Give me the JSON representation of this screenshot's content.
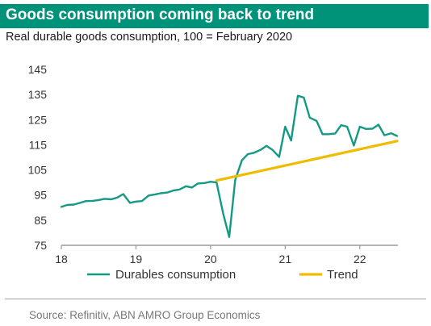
{
  "header": {
    "title": "Goods consumption coming back to trend",
    "subtitle": "Real durable goods consumption, 100 = February 2020"
  },
  "footer": {
    "source": "Source: Refinitiv, ABN AMRO Group Economics"
  },
  "colors": {
    "title_bg": "#00937a",
    "durables": "#149a84",
    "trend": "#f0bc00",
    "axis": "#9a9a9a"
  },
  "chart_data": {
    "type": "line",
    "x_unit": "year (two-digit, fractional)",
    "xlim": [
      18.0,
      22.5
    ],
    "ylim": [
      75,
      145
    ],
    "x_ticks": [
      {
        "value": 18,
        "label": "18"
      },
      {
        "value": 19,
        "label": "19"
      },
      {
        "value": 20,
        "label": "20"
      },
      {
        "value": 21,
        "label": "21"
      },
      {
        "value": 22,
        "label": "22"
      }
    ],
    "y_ticks": [
      {
        "value": 75,
        "label": "75"
      },
      {
        "value": 85,
        "label": "85"
      },
      {
        "value": 95,
        "label": "95"
      },
      {
        "value": 105,
        "label": "105"
      },
      {
        "value": 115,
        "label": "115"
      },
      {
        "value": 125,
        "label": "125"
      },
      {
        "value": 135,
        "label": "135"
      },
      {
        "value": 145,
        "label": "145"
      }
    ],
    "grid": false,
    "legend_position": "bottom",
    "series": [
      {
        "name": "Durables consumption",
        "color": "#149a84",
        "points": [
          [
            18.0,
            90.3
          ],
          [
            18.08,
            91.1
          ],
          [
            18.17,
            91.2
          ],
          [
            18.25,
            91.9
          ],
          [
            18.33,
            92.6
          ],
          [
            18.42,
            92.7
          ],
          [
            18.5,
            93.0
          ],
          [
            18.58,
            93.5
          ],
          [
            18.67,
            93.3
          ],
          [
            18.75,
            94.0
          ],
          [
            18.83,
            95.4
          ],
          [
            18.92,
            91.9
          ],
          [
            19.0,
            92.4
          ],
          [
            19.08,
            92.6
          ],
          [
            19.17,
            94.8
          ],
          [
            19.25,
            95.2
          ],
          [
            19.33,
            95.7
          ],
          [
            19.42,
            96.0
          ],
          [
            19.5,
            96.8
          ],
          [
            19.58,
            97.2
          ],
          [
            19.67,
            98.5
          ],
          [
            19.75,
            98.0
          ],
          [
            19.83,
            99.6
          ],
          [
            19.92,
            99.8
          ],
          [
            20.0,
            100.3
          ],
          [
            20.08,
            100.0
          ],
          [
            20.17,
            87.5
          ],
          [
            20.25,
            78.3
          ],
          [
            20.33,
            101.0
          ],
          [
            20.42,
            108.8
          ],
          [
            20.5,
            111.3
          ],
          [
            20.58,
            111.8
          ],
          [
            20.67,
            113.0
          ],
          [
            20.75,
            114.6
          ],
          [
            20.83,
            113.0
          ],
          [
            20.92,
            110.2
          ],
          [
            21.0,
            122.2
          ],
          [
            21.08,
            116.7
          ],
          [
            21.17,
            134.5
          ],
          [
            21.25,
            133.8
          ],
          [
            21.33,
            125.8
          ],
          [
            21.42,
            124.5
          ],
          [
            21.5,
            119.2
          ],
          [
            21.58,
            119.2
          ],
          [
            21.67,
            119.5
          ],
          [
            21.75,
            122.8
          ],
          [
            21.83,
            122.2
          ],
          [
            21.92,
            114.7
          ],
          [
            22.0,
            122.2
          ],
          [
            22.08,
            121.3
          ],
          [
            22.17,
            121.4
          ],
          [
            22.25,
            123.0
          ],
          [
            22.33,
            118.8
          ],
          [
            22.42,
            119.6
          ],
          [
            22.5,
            118.5
          ]
        ]
      },
      {
        "name": "Trend",
        "color": "#f0bc00",
        "points": [
          [
            20.08,
            100.8
          ],
          [
            22.5,
            116.5
          ]
        ]
      }
    ]
  }
}
